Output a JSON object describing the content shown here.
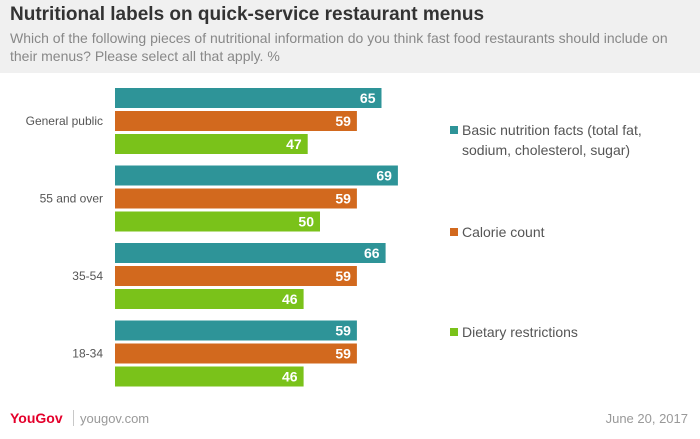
{
  "header": {
    "title": "Nutritional labels on quick-service restaurant menus",
    "subtitle": "Which of the following pieces of nutritional information do you think fast food restaurants should include on their menus? Please select all that apply. %"
  },
  "chart_data": {
    "type": "bar",
    "orientation": "horizontal",
    "title": "Nutritional labels on quick-service restaurant menus",
    "categories": [
      "General public",
      "55 and over",
      "35-54",
      "18-34"
    ],
    "series": [
      {
        "name": "Basic nutrition facts (total fat, sodium, cholesterol, sugar)",
        "color": "#2e9498",
        "values": [
          65,
          69,
          66,
          59
        ]
      },
      {
        "name": "Calorie count",
        "color": "#d2691e",
        "values": [
          59,
          59,
          59,
          59
        ]
      },
      {
        "name": "Dietary restrictions",
        "color": "#7ac21a",
        "values": [
          47,
          50,
          46,
          46
        ]
      }
    ],
    "xlim": [
      0,
      100
    ],
    "grid": false,
    "data_labels": true,
    "legend_position": "right"
  },
  "footer": {
    "logo": "YouGov",
    "site": "yougov.com",
    "date": "June 20, 2017"
  }
}
